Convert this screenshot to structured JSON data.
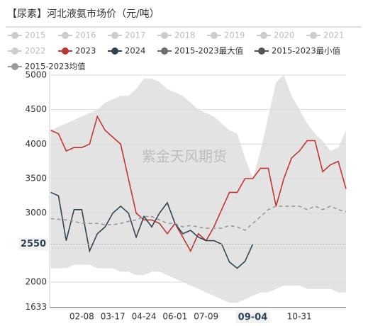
{
  "chart_data": {
    "type": "line",
    "title": "【尿素】河北液氨市场价（元/吨）",
    "watermark": "紫金天风期货",
    "categories": [
      null,
      null,
      null,
      null,
      "02-08",
      null,
      null,
      null,
      "03-17",
      null,
      null,
      null,
      "04-24",
      null,
      null,
      null,
      "06-01",
      null,
      null,
      null,
      "07-09",
      null,
      null,
      null,
      null,
      null,
      "09-04",
      null,
      null,
      null,
      null,
      null,
      "10-31",
      null,
      null,
      null,
      null,
      null,
      null
    ],
    "inactive_legend": [
      "2015",
      "2016",
      "2017",
      "2018",
      "2019",
      "2020",
      "2021",
      "2022"
    ],
    "series": [
      {
        "name": "2023",
        "color": "#c23531",
        "style": "line",
        "values": [
          4200,
          4150,
          3900,
          3950,
          3950,
          4000,
          4400,
          4200,
          4100,
          4000,
          3500,
          3000,
          2900,
          2900,
          2850,
          2700,
          2850,
          2650,
          2450,
          2700,
          2600,
          2800,
          3050,
          3300,
          3300,
          3500,
          3500,
          3650,
          3650,
          3100,
          3500,
          3800,
          3900,
          4050,
          4050,
          3600,
          3700,
          3750,
          3350
        ]
      },
      {
        "name": "2024",
        "color": "#2f4554",
        "style": "line",
        "values": [
          3300,
          3250,
          2600,
          3050,
          3050,
          2450,
          2700,
          2800,
          3000,
          3100,
          3000,
          2650,
          2950,
          2800,
          3000,
          3150,
          2850,
          2700,
          2750,
          2650,
          2600,
          2600,
          2550,
          2290,
          2200,
          2300,
          2550,
          null,
          null,
          null,
          null,
          null,
          null,
          null,
          null,
          null,
          null,
          null,
          null
        ]
      },
      {
        "name": "2015-2023最大值",
        "color": "#6e6e6e",
        "style": "area-top",
        "fill": "#e3e3e3",
        "values": [
          4200,
          4250,
          4300,
          4350,
          4400,
          4450,
          4500,
          4600,
          4650,
          4700,
          4700,
          4800,
          4950,
          4950,
          4900,
          4800,
          4750,
          4700,
          4600,
          4500,
          4450,
          4400,
          4300,
          4200,
          4150,
          3800,
          3500,
          3900,
          4400,
          4900,
          5000,
          4700,
          4500,
          4300,
          4150,
          4050,
          3900,
          3950,
          4200
        ]
      },
      {
        "name": "2015-2023最小值",
        "color": "#555555",
        "style": "area-bottom",
        "fill": "#ffffff",
        "values": [
          2200,
          2200,
          2200,
          2250,
          2250,
          2250,
          2200,
          2200,
          2200,
          2150,
          2150,
          2100,
          2100,
          2150,
          2150,
          2100,
          2050,
          2000,
          1950,
          1900,
          1850,
          1800,
          1750,
          1700,
          1700,
          1750,
          1800,
          1850,
          1850,
          1900,
          1950,
          1950,
          1950,
          1900,
          1900,
          1900,
          1900,
          1850,
          1850
        ]
      },
      {
        "name": "2015-2023均值",
        "color": "#999999",
        "style": "dashed",
        "values": [
          2920,
          2910,
          2900,
          2880,
          2850,
          2850,
          2850,
          2830,
          2830,
          2850,
          2880,
          2900,
          2950,
          2950,
          2900,
          2850,
          2850,
          2800,
          2820,
          2800,
          2780,
          2780,
          2780,
          2820,
          2800,
          2750,
          2850,
          2950,
          3050,
          3100,
          3100,
          3100,
          3100,
          3050,
          3100,
          3050,
          3100,
          3050,
          3020
        ]
      }
    ],
    "ylim": [
      1633,
      5000
    ],
    "yticks": [
      1633,
      2000,
      2500,
      3000,
      3500,
      4000,
      4500,
      5000
    ],
    "y_pointer": 2550,
    "x_pointer": "09-04",
    "grid": true
  }
}
